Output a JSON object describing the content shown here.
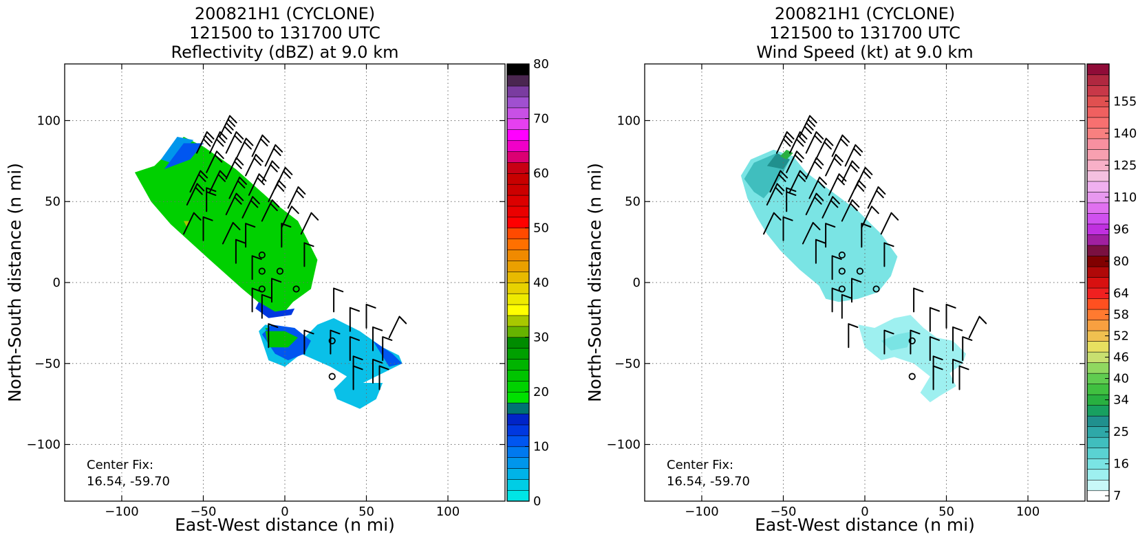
{
  "chart_data": [
    {
      "type": "heatmap",
      "title": [
        "200821H1 (CYCLONE)",
        "121500 to 131700 UTC",
        "Reflectivity (dBZ) at 9.0 km"
      ],
      "xlabel": "East-West distance (n mi)",
      "ylabel": "North-South distance (n mi)",
      "xlim": [
        -135,
        135
      ],
      "ylim": [
        -135,
        135
      ],
      "xticks": [
        -100,
        -50,
        0,
        50,
        100
      ],
      "yticks": [
        -100,
        -50,
        0,
        50,
        100
      ],
      "grid": true,
      "annotation": [
        "Center Fix:",
        "16.54, -59.70"
      ],
      "colorbar": {
        "min": 0,
        "max": 80,
        "tick_values": [
          0,
          10,
          20,
          30,
          40,
          50,
          60,
          70,
          80
        ],
        "tick_labels": [
          "0",
          "10",
          "20",
          "30",
          "40",
          "50",
          "60",
          "70",
          "80"
        ],
        "colors": [
          "#00e5e5",
          "#00cde5",
          "#00b3e8",
          "#0096ec",
          "#0079f0",
          "#0056f0",
          "#0038e0",
          "#0024c8",
          "#007373",
          "#00e000",
          "#00d200",
          "#00c400",
          "#00b400",
          "#00a000",
          "#008c00",
          "#66b400",
          "#a8c800",
          "#ffff00",
          "#eeea00",
          "#e8d200",
          "#e8ba00",
          "#eaa000",
          "#f08a00",
          "#ff7000",
          "#ff4a00",
          "#ff0000",
          "#ea0000",
          "#dc0000",
          "#cc0000",
          "#c80000",
          "#c80014",
          "#dc0073",
          "#f000c8",
          "#ff00ff",
          "#e640f0",
          "#c850e6",
          "#a050d0",
          "#7a3ca0",
          "#4a2650",
          "#000000"
        ]
      },
      "wind_barbs_note": "wind barbs in kt"
    },
    {
      "type": "heatmap",
      "title": [
        "200821H1 (CYCLONE)",
        "121500 to 131700 UTC",
        "Wind Speed (kt) at 9.0 km"
      ],
      "xlabel": "East-West distance (n mi)",
      "ylabel": "North-South distance (n mi)",
      "xlim": [
        -135,
        135
      ],
      "ylim": [
        -135,
        135
      ],
      "xticks": [
        -100,
        -50,
        0,
        50,
        100
      ],
      "yticks": [
        -100,
        -50,
        0,
        50,
        100
      ],
      "grid": true,
      "annotation": [
        "Center Fix:",
        "16.54, -59.70"
      ],
      "colorbar": {
        "min": 7,
        "max": 160,
        "tick_values": [
          7,
          16,
          25,
          34,
          40,
          46,
          52,
          58,
          64,
          80,
          96,
          110,
          125,
          140,
          155
        ],
        "tick_labels": [
          "7",
          "16",
          "25",
          "34",
          "40",
          "46",
          "52",
          "58",
          "64",
          "80",
          "96",
          "110",
          "125",
          "140",
          "155"
        ],
        "colors": [
          "#ffffff",
          "#c8f8f8",
          "#9ef0f0",
          "#7ae4e4",
          "#5ad2d2",
          "#40bebe",
          "#2ea8a8",
          "#20908e",
          "#18a060",
          "#28b040",
          "#40c040",
          "#60cc50",
          "#90d860",
          "#c8e070",
          "#e8e060",
          "#f0c050",
          "#f8a040",
          "#ff7a30",
          "#ff5020",
          "#f02020",
          "#d81010",
          "#b00808",
          "#800000",
          "#7a1040",
          "#a020a0",
          "#c030e0",
          "#d050f0",
          "#e070f0",
          "#e898f0",
          "#f0b0f0",
          "#f4c0e0",
          "#f8b0c8",
          "#f8a0b0",
          "#f890a0",
          "#f88080",
          "#f87070",
          "#f06060",
          "#e05050",
          "#c83848",
          "#b02840",
          "#900c38"
        ]
      },
      "wind_barbs_note": "wind barbs in kt"
    }
  ]
}
